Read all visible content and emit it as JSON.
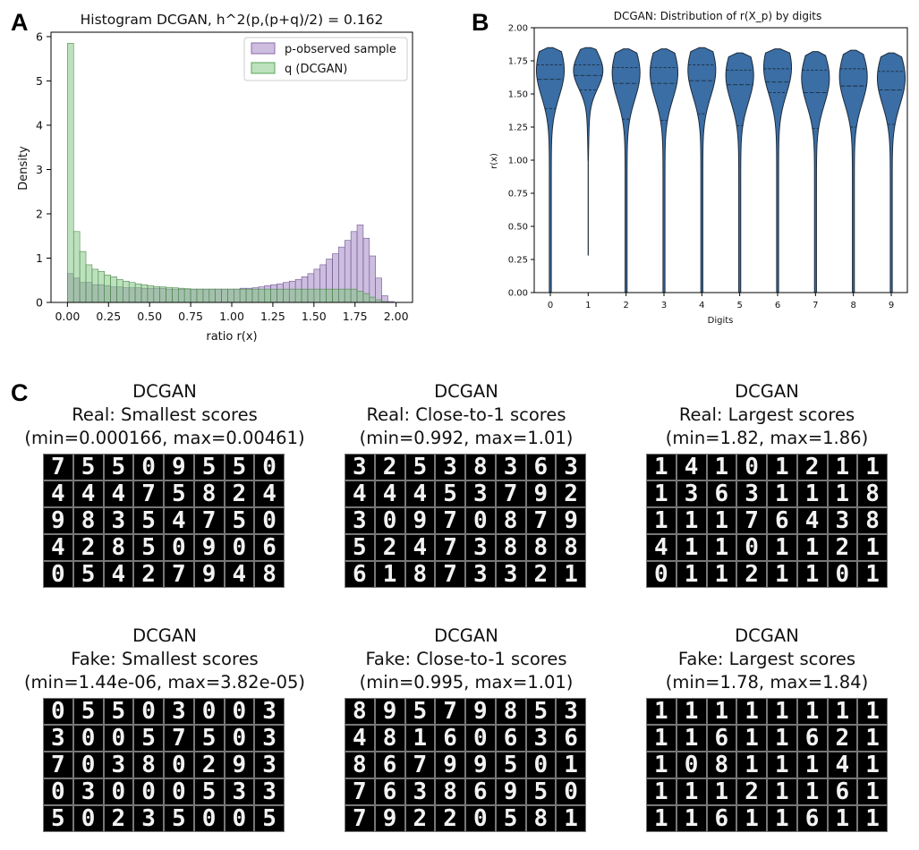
{
  "panels": {
    "a": "A",
    "b": "B",
    "c": "C"
  },
  "chart_data": [
    {
      "type": "histogram",
      "title": "Histogram DCGAN, h^2(p,(p+q)/2) = 0.162",
      "xlabel": "ratio r(x)",
      "ylabel": "Density",
      "xlim": [
        -0.1,
        2.1
      ],
      "ylim": [
        0,
        6.1
      ],
      "xticks": [
        "0.00",
        "0.25",
        "0.50",
        "0.75",
        "1.00",
        "1.25",
        "1.50",
        "1.75",
        "2.00"
      ],
      "yticks": [
        "0",
        "1",
        "2",
        "3",
        "4",
        "5",
        "6"
      ],
      "bin_start": 0.0,
      "bin_width": 0.0375,
      "series": [
        {
          "name": "p-observed sample",
          "color": "#9b7bbf",
          "values": [
            0.65,
            0.55,
            0.45,
            0.45,
            0.4,
            0.4,
            0.38,
            0.35,
            0.35,
            0.33,
            0.33,
            0.33,
            0.32,
            0.32,
            0.32,
            0.32,
            0.3,
            0.3,
            0.3,
            0.3,
            0.3,
            0.3,
            0.3,
            0.3,
            0.3,
            0.3,
            0.3,
            0.3,
            0.32,
            0.32,
            0.33,
            0.35,
            0.38,
            0.4,
            0.42,
            0.45,
            0.48,
            0.52,
            0.58,
            0.65,
            0.75,
            0.85,
            0.98,
            1.1,
            1.25,
            1.4,
            1.6,
            1.75,
            1.45,
            1.05,
            0.55,
            0.15,
            0.02
          ]
        },
        {
          "name": "q (DCGAN)",
          "color": "#7cc47c",
          "values": [
            5.85,
            1.6,
            1.15,
            0.85,
            0.75,
            0.7,
            0.62,
            0.58,
            0.52,
            0.48,
            0.45,
            0.42,
            0.4,
            0.38,
            0.36,
            0.35,
            0.34,
            0.33,
            0.32,
            0.31,
            0.3,
            0.3,
            0.3,
            0.3,
            0.3,
            0.3,
            0.3,
            0.3,
            0.3,
            0.3,
            0.3,
            0.3,
            0.3,
            0.3,
            0.3,
            0.3,
            0.3,
            0.3,
            0.3,
            0.3,
            0.3,
            0.3,
            0.3,
            0.3,
            0.3,
            0.3,
            0.3,
            0.25,
            0.2,
            0.12,
            0.06,
            0.02,
            0.0
          ]
        }
      ],
      "legend": "top-right"
    },
    {
      "type": "violin",
      "title": "DCGAN: Distribution of r(X_p) by digits",
      "xlabel": "Digits",
      "ylabel": "r(x)",
      "ylim": [
        0,
        2.0
      ],
      "yticks": [
        "0.00",
        "0.25",
        "0.50",
        "0.75",
        "1.00",
        "1.25",
        "1.50",
        "1.75",
        "2.00"
      ],
      "categories": [
        "0",
        "1",
        "2",
        "3",
        "4",
        "5",
        "6",
        "7",
        "8",
        "9"
      ],
      "color": "#3a6ea5",
      "violins": [
        {
          "min": 0.0,
          "max": 1.85,
          "q1": 1.39,
          "median": 1.61,
          "q3": 1.72,
          "mode": 1.68
        },
        {
          "min": 0.28,
          "max": 1.85,
          "q1": 1.53,
          "median": 1.64,
          "q3": 1.72,
          "mode": 1.68
        },
        {
          "min": 0.0,
          "max": 1.84,
          "q1": 1.31,
          "median": 1.58,
          "q3": 1.7,
          "mode": 1.66
        },
        {
          "min": 0.0,
          "max": 1.84,
          "q1": 1.3,
          "median": 1.58,
          "q3": 1.7,
          "mode": 1.66
        },
        {
          "min": 0.0,
          "max": 1.85,
          "q1": 1.35,
          "median": 1.6,
          "q3": 1.72,
          "mode": 1.68
        },
        {
          "min": 0.0,
          "max": 1.81,
          "q1": 1.26,
          "median": 1.57,
          "q3": 1.68,
          "mode": 1.64
        },
        {
          "min": 0.0,
          "max": 1.84,
          "q1": 1.51,
          "median": 1.59,
          "q3": 1.69,
          "mode": 1.7
        },
        {
          "min": 0.0,
          "max": 1.82,
          "q1": 1.24,
          "median": 1.51,
          "q3": 1.68,
          "mode": 1.62
        },
        {
          "min": 0.0,
          "max": 1.83,
          "q1": 1.25,
          "median": 1.56,
          "q3": 1.69,
          "mode": 1.63
        },
        {
          "min": 0.0,
          "max": 1.81,
          "q1": 1.27,
          "median": 1.53,
          "q3": 1.67,
          "mode": 1.62
        }
      ]
    }
  ],
  "grids": [
    {
      "line1": "DCGAN",
      "line2": "Real: Smallest scores",
      "line3": "(min=0.000166, max=0.00461)",
      "rows": [
        "75509550",
        "44475824",
        "98354750",
        "42850906",
        "05427948"
      ]
    },
    {
      "line1": "DCGAN",
      "line2": "Real: Close-to-1 scores",
      "line3": "(min=0.992, max=1.01)",
      "rows": [
        "32538363",
        "44453792",
        "30970879",
        "52473888",
        "61873321"
      ]
    },
    {
      "line1": "DCGAN",
      "line2": "Real: Largest scores",
      "line3": "(min=1.82, max=1.86)",
      "rows": [
        "14101211",
        "13631118",
        "11176438",
        "41101121",
        "01121101"
      ]
    },
    {
      "line1": "DCGAN",
      "line2": "Fake: Smallest scores",
      "line3": "(min=1.44e-06, max=3.82e-05)",
      "rows": [
        "05503003",
        "30057503",
        "70380293",
        "03000533",
        "50235005"
      ]
    },
    {
      "line1": "DCGAN",
      "line2": "Fake: Close-to-1 scores",
      "line3": "(min=0.995, max=1.01)",
      "rows": [
        "89579853",
        "48160636",
        "86799501",
        "76386950",
        "79220581"
      ]
    },
    {
      "line1": "DCGAN",
      "line2": "Fake: Largest scores",
      "line3": "(min=1.78, max=1.84)",
      "rows": [
        "11111111",
        "11611621",
        "10811141",
        "11121161",
        "11611611"
      ]
    }
  ]
}
